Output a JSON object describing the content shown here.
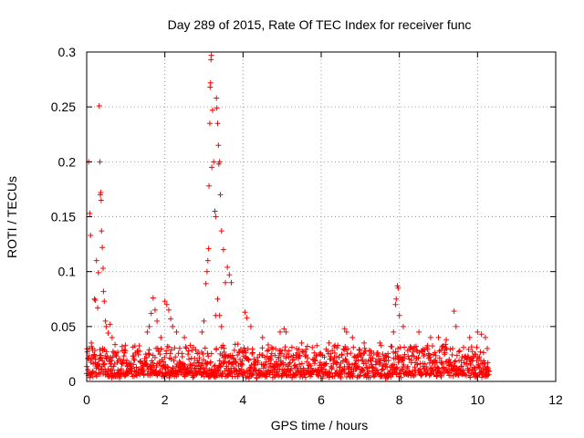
{
  "chart_data": {
    "type": "scatter",
    "title": "Day 289 of 2015, Rate Of TEC Index for receiver func",
    "xlabel": "GPS time / hours",
    "ylabel": "ROTI / TECUs",
    "xlim": [
      0,
      12
    ],
    "ylim": [
      0,
      0.3
    ],
    "xticks": [
      0,
      2,
      4,
      6,
      8,
      10,
      12
    ],
    "xtick_labels": [
      "0",
      "2",
      "4",
      "6",
      "8",
      "10",
      "12"
    ],
    "yticks": [
      0,
      0.05,
      0.1,
      0.15,
      0.2,
      0.25,
      0.3
    ],
    "ytick_labels": [
      "0",
      "0.05",
      "0.1",
      "0.15",
      "0.2",
      "0.25",
      "0.3"
    ],
    "grid": true,
    "marker": "+",
    "color": "#ff0000",
    "x_data_range": [
      0,
      10.3
    ],
    "baseline_band": [
      0.003,
      0.035
    ],
    "series": [
      {
        "name": "ROTI",
        "points": [
          [
            0.05,
            0.2
          ],
          [
            0.08,
            0.153
          ],
          [
            0.1,
            0.133
          ],
          [
            0.12,
            0.035
          ],
          [
            0.15,
            0.03
          ],
          [
            0.2,
            0.075
          ],
          [
            0.22,
            0.074
          ],
          [
            0.25,
            0.11
          ],
          [
            0.28,
            0.067
          ],
          [
            0.3,
            0.099
          ],
          [
            0.32,
            0.251
          ],
          [
            0.34,
            0.2
          ],
          [
            0.35,
            0.17
          ],
          [
            0.36,
            0.172
          ],
          [
            0.37,
            0.165
          ],
          [
            0.38,
            0.137
          ],
          [
            0.4,
            0.122
          ],
          [
            0.42,
            0.103
          ],
          [
            0.43,
            0.082
          ],
          [
            0.45,
            0.073
          ],
          [
            0.48,
            0.055
          ],
          [
            0.5,
            0.05
          ],
          [
            0.55,
            0.044
          ],
          [
            0.6,
            0.052
          ],
          [
            0.65,
            0.04
          ],
          [
            1.55,
            0.045
          ],
          [
            1.6,
            0.05
          ],
          [
            1.65,
            0.062
          ],
          [
            1.7,
            0.076
          ],
          [
            1.75,
            0.065
          ],
          [
            1.8,
            0.055
          ],
          [
            1.9,
            0.04
          ],
          [
            2.0,
            0.073
          ],
          [
            2.05,
            0.07
          ],
          [
            2.1,
            0.065
          ],
          [
            2.15,
            0.057
          ],
          [
            2.2,
            0.05
          ],
          [
            2.3,
            0.045
          ],
          [
            2.5,
            0.04
          ],
          [
            2.95,
            0.045
          ],
          [
            3.0,
            0.055
          ],
          [
            3.05,
            0.089
          ],
          [
            3.08,
            0.1
          ],
          [
            3.1,
            0.11
          ],
          [
            3.12,
            0.121
          ],
          [
            3.13,
            0.178
          ],
          [
            3.15,
            0.235
          ],
          [
            3.16,
            0.268
          ],
          [
            3.17,
            0.272
          ],
          [
            3.18,
            0.293
          ],
          [
            3.19,
            0.297
          ],
          [
            3.2,
            0.195
          ],
          [
            3.22,
            0.247
          ],
          [
            3.25,
            0.2
          ],
          [
            3.28,
            0.155
          ],
          [
            3.3,
            0.15
          ],
          [
            3.32,
            0.258
          ],
          [
            3.33,
            0.249
          ],
          [
            3.35,
            0.235
          ],
          [
            3.37,
            0.215
          ],
          [
            3.38,
            0.198
          ],
          [
            3.4,
            0.2
          ],
          [
            3.42,
            0.17
          ],
          [
            3.45,
            0.137
          ],
          [
            3.5,
            0.12
          ],
          [
            3.55,
            0.09
          ],
          [
            3.6,
            0.104
          ],
          [
            3.65,
            0.097
          ],
          [
            3.7,
            0.09
          ],
          [
            3.3,
            0.06
          ],
          [
            3.35,
            0.075
          ],
          [
            3.4,
            0.06
          ],
          [
            3.45,
            0.05
          ],
          [
            4.05,
            0.063
          ],
          [
            4.1,
            0.058
          ],
          [
            4.2,
            0.05
          ],
          [
            4.5,
            0.04
          ],
          [
            4.95,
            0.045
          ],
          [
            5.05,
            0.048
          ],
          [
            5.1,
            0.045
          ],
          [
            5.5,
            0.035
          ],
          [
            6.2,
            0.035
          ],
          [
            6.6,
            0.048
          ],
          [
            6.65,
            0.045
          ],
          [
            6.8,
            0.04
          ],
          [
            7.1,
            0.035
          ],
          [
            7.5,
            0.035
          ],
          [
            7.85,
            0.045
          ],
          [
            7.9,
            0.07
          ],
          [
            7.92,
            0.075
          ],
          [
            7.95,
            0.087
          ],
          [
            7.97,
            0.085
          ],
          [
            8.0,
            0.06
          ],
          [
            8.1,
            0.05
          ],
          [
            8.5,
            0.045
          ],
          [
            8.8,
            0.04
          ],
          [
            9.0,
            0.04
          ],
          [
            9.2,
            0.038
          ],
          [
            9.4,
            0.064
          ],
          [
            9.45,
            0.05
          ],
          [
            9.8,
            0.04
          ],
          [
            10.0,
            0.045
          ],
          [
            10.1,
            0.043
          ],
          [
            10.2,
            0.04
          ],
          [
            10.25,
            0.03
          ]
        ]
      }
    ]
  }
}
